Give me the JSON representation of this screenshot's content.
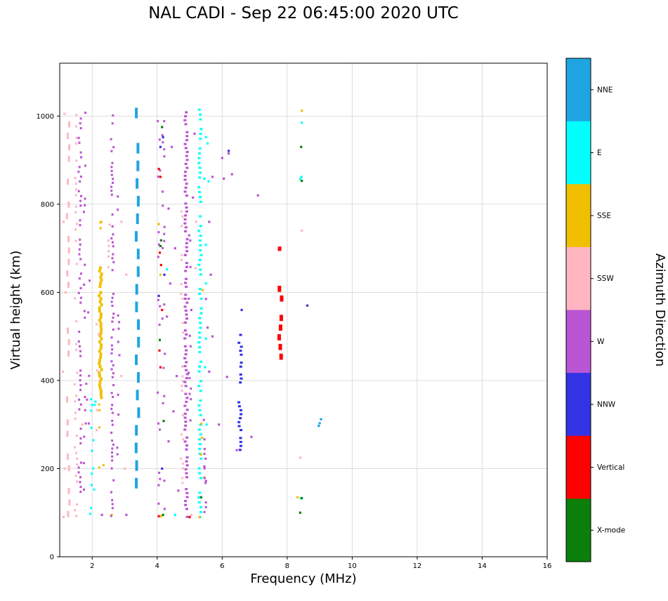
{
  "chart_data": {
    "type": "scatter",
    "title": "NAL CADI - Sep 22 06:45:00 2020 UTC",
    "xlabel": "Frequency (MHz)",
    "ylabel": "Virtual height (km)",
    "legend_title": "Azimuth Direction",
    "xlim": [
      1,
      16
    ],
    "ylim": [
      0,
      1120
    ],
    "xticks": [
      2,
      4,
      6,
      8,
      10,
      12,
      14,
      16
    ],
    "yticks": [
      0,
      200,
      400,
      600,
      800,
      1000
    ],
    "grid": true,
    "units": {
      "x": "MHz",
      "y": "km"
    },
    "series_format": "segments are dotted/dashed vertical echo columns [x MHz, y0..y1 km]; points are isolated echoes [x MHz, y km]",
    "categories": [
      {
        "name": "NNE",
        "color": "#1fa5e2"
      },
      {
        "name": "E",
        "color": "#00ffff"
      },
      {
        "name": "SSE",
        "color": "#f0c000"
      },
      {
        "name": "SSW",
        "color": "#ffb6c1"
      },
      {
        "name": "W",
        "color": "#ba55d3"
      },
      {
        "name": "NNW",
        "color": "#3333e6"
      },
      {
        "name": "Vertical",
        "color": "#ff0000"
      },
      {
        "name": "X-mode",
        "color": "#0a800a"
      }
    ],
    "series": [
      {
        "name": "NNE",
        "segments": [
          {
            "x": 3.39,
            "y0": 155,
            "y1": 1020,
            "step": 40,
            "dash": 24,
            "style": "dash",
            "density": 0.95,
            "w": 4
          }
        ],
        "points": [
          [
            9.0,
            303
          ],
          [
            9.04,
            312
          ],
          [
            8.97,
            297
          ]
        ]
      },
      {
        "name": "E",
        "segments": [
          {
            "x": 5.32,
            "y0": 88,
            "y1": 1012,
            "step": 11,
            "density": 0.85,
            "w": 4
          },
          {
            "x": 1.97,
            "y0": 95,
            "y1": 400,
            "step": 13,
            "density": 0.4
          },
          {
            "x": 2.06,
            "y0": 150,
            "y1": 380,
            "step": 16,
            "density": 0.25
          }
        ],
        "points": [
          [
            5.5,
            952
          ],
          [
            5.55,
            938
          ],
          [
            5.45,
            858
          ],
          [
            5.58,
            852
          ],
          [
            8.45,
            985
          ],
          [
            8.44,
            862
          ],
          [
            8.4,
            857
          ],
          [
            8.42,
            133
          ],
          [
            5.5,
            495
          ],
          [
            5.52,
            300
          ],
          [
            5.47,
            430
          ],
          [
            5.5,
            620
          ],
          [
            4.3,
            652
          ],
          [
            5.5,
            708
          ],
          [
            2.1,
            352
          ],
          [
            4.55,
            95
          ]
        ]
      },
      {
        "name": "SSE",
        "segments": [
          {
            "x": 2.25,
            "y0": 358,
            "y1": 652,
            "step": 7,
            "density": 0.97,
            "w": 4,
            "h": 7
          },
          {
            "x": 2.25,
            "y0": 200,
            "y1": 358,
            "step": 13,
            "density": 0.3
          },
          {
            "x": 2.25,
            "y0": 652,
            "y1": 768,
            "step": 13,
            "density": 0.35
          }
        ],
        "points": [
          [
            4.12,
            92
          ],
          [
            5.38,
            270
          ],
          [
            5.35,
            232
          ],
          [
            5.4,
            605
          ],
          [
            8.45,
            1012
          ],
          [
            8.32,
            135
          ],
          [
            5.3,
            90
          ],
          [
            2.6,
            95
          ],
          [
            5.36,
            302
          ],
          [
            4.05,
            755
          ],
          [
            4.1,
            640
          ],
          [
            2.35,
            208
          ],
          [
            5.45,
            180
          ],
          [
            2.28,
            760
          ]
        ]
      },
      {
        "name": "SSW",
        "segments": [
          {
            "x": 1.26,
            "y0": 90,
            "y1": 1015,
            "step": 26,
            "dash": 14,
            "style": "dash",
            "density": 0.6
          },
          {
            "x": 1.5,
            "y0": 90,
            "y1": 1010,
            "step": 13,
            "density": 0.45
          },
          {
            "x": 4.76,
            "y0": 165,
            "y1": 800,
            "step": 11,
            "density": 0.45
          },
          {
            "x": 2.52,
            "y0": 595,
            "y1": 770,
            "step": 12,
            "density": 0.4
          },
          {
            "x": 2.15,
            "y0": 90,
            "y1": 530,
            "step": 15,
            "density": 0.25
          }
        ],
        "points": [
          [
            8.45,
            740
          ],
          [
            8.4,
            225
          ],
          [
            5.2,
            760
          ],
          [
            5.18,
            655
          ],
          [
            1.7,
            300
          ],
          [
            2.9,
            410
          ],
          [
            5.05,
            95
          ],
          [
            1.12,
            90
          ],
          [
            1.15,
            200
          ],
          [
            1.1,
            420
          ],
          [
            1.18,
            600
          ],
          [
            1.12,
            760
          ],
          [
            1.15,
            1005
          ],
          [
            3.0,
            200
          ],
          [
            2.9,
            760
          ],
          [
            3.05,
            640
          ],
          [
            2.2,
            505
          ],
          [
            2.15,
            333
          ]
        ]
      },
      {
        "name": "W",
        "segments": [
          {
            "x": 1.62,
            "y0": 90,
            "y1": 1012,
            "step": 11,
            "density": 0.5
          },
          {
            "x": 1.78,
            "y0": 150,
            "y1": 1005,
            "step": 15,
            "density": 0.3
          },
          {
            "x": 2.62,
            "y0": 90,
            "y1": 1012,
            "step": 9,
            "density": 0.6
          },
          {
            "x": 2.8,
            "y0": 200,
            "y1": 905,
            "step": 15,
            "density": 0.25
          },
          {
            "x": 4.89,
            "y0": 88,
            "y1": 1012,
            "step": 9,
            "density": 0.85,
            "w": 4
          },
          {
            "x": 5.0,
            "y0": 295,
            "y1": 800,
            "step": 12,
            "density": 0.35
          },
          {
            "x": 5.47,
            "y0": 88,
            "y1": 312,
            "step": 11,
            "density": 0.45
          },
          {
            "x": 4.05,
            "y0": 90,
            "y1": 1010,
            "step": 14,
            "density": 0.3
          },
          {
            "x": 4.2,
            "y0": 90,
            "y1": 1010,
            "step": 16,
            "density": 0.25
          },
          {
            "x": 1.88,
            "y0": 300,
            "y1": 800,
            "step": 18,
            "density": 0.15
          }
        ],
        "points": [
          [
            6.2,
            915
          ],
          [
            6.05,
            858
          ],
          [
            6.3,
            868
          ],
          [
            7.1,
            820
          ],
          [
            6.9,
            272
          ],
          [
            6.15,
            408
          ],
          [
            5.9,
            300
          ],
          [
            6.45,
            242
          ],
          [
            3.05,
            95
          ],
          [
            5.6,
            420
          ],
          [
            5.7,
            500
          ],
          [
            5.05,
            560
          ],
          [
            5.5,
            585
          ],
          [
            4.4,
            620
          ],
          [
            5.65,
            640
          ],
          [
            4.55,
            700
          ],
          [
            5.6,
            760
          ],
          [
            4.35,
            790
          ],
          [
            5.1,
            815
          ],
          [
            5.7,
            862
          ],
          [
            6.0,
            905
          ],
          [
            4.45,
            930
          ],
          [
            5.15,
            960
          ],
          [
            5.55,
            520
          ],
          [
            4.3,
            545
          ],
          [
            4.5,
            330
          ],
          [
            4.6,
            410
          ],
          [
            4.35,
            262
          ],
          [
            5.45,
            205
          ],
          [
            4.65,
            150
          ],
          [
            5.5,
            172
          ],
          [
            2.3,
            95
          ]
        ]
      },
      {
        "name": "NNW",
        "segments": [
          {
            "x": 6.55,
            "y0": 240,
            "y1": 505,
            "step": 9,
            "density": 0.7,
            "w": 4
          }
        ],
        "points": [
          [
            8.62,
            570
          ],
          [
            6.2,
            921
          ],
          [
            4.1,
            930
          ],
          [
            4.18,
            952
          ],
          [
            4.05,
            592
          ],
          [
            4.22,
            640
          ],
          [
            4.15,
            200
          ],
          [
            6.6,
            560
          ]
        ]
      },
      {
        "name": "Vertical",
        "segments": [
          {
            "x": 7.79,
            "y0": 425,
            "y1": 615,
            "step": 22,
            "dash": 14,
            "style": "dash",
            "density": 0.9,
            "w": 5
          },
          {
            "x": 7.79,
            "y0": 640,
            "y1": 702,
            "step": 18,
            "dash": 10,
            "style": "dash",
            "density": 0.6,
            "w": 5
          }
        ],
        "points": [
          [
            4.05,
            92
          ],
          [
            4.1,
            430
          ],
          [
            4.07,
            468
          ],
          [
            4.12,
            662
          ],
          [
            4.08,
            690
          ],
          [
            4.1,
            862
          ],
          [
            4.05,
            880
          ],
          [
            4.15,
            560
          ],
          [
            5.0,
            90
          ]
        ]
      },
      {
        "name": "X-mode",
        "segments": [],
        "points": [
          [
            4.1,
            705
          ],
          [
            4.12,
            718
          ],
          [
            4.18,
            95
          ],
          [
            4.08,
            492
          ],
          [
            4.2,
            308
          ],
          [
            8.45,
            853
          ],
          [
            8.43,
            930
          ],
          [
            8.45,
            133
          ],
          [
            8.4,
            100
          ],
          [
            5.35,
            135
          ],
          [
            4.15,
            975
          ]
        ]
      }
    ]
  }
}
